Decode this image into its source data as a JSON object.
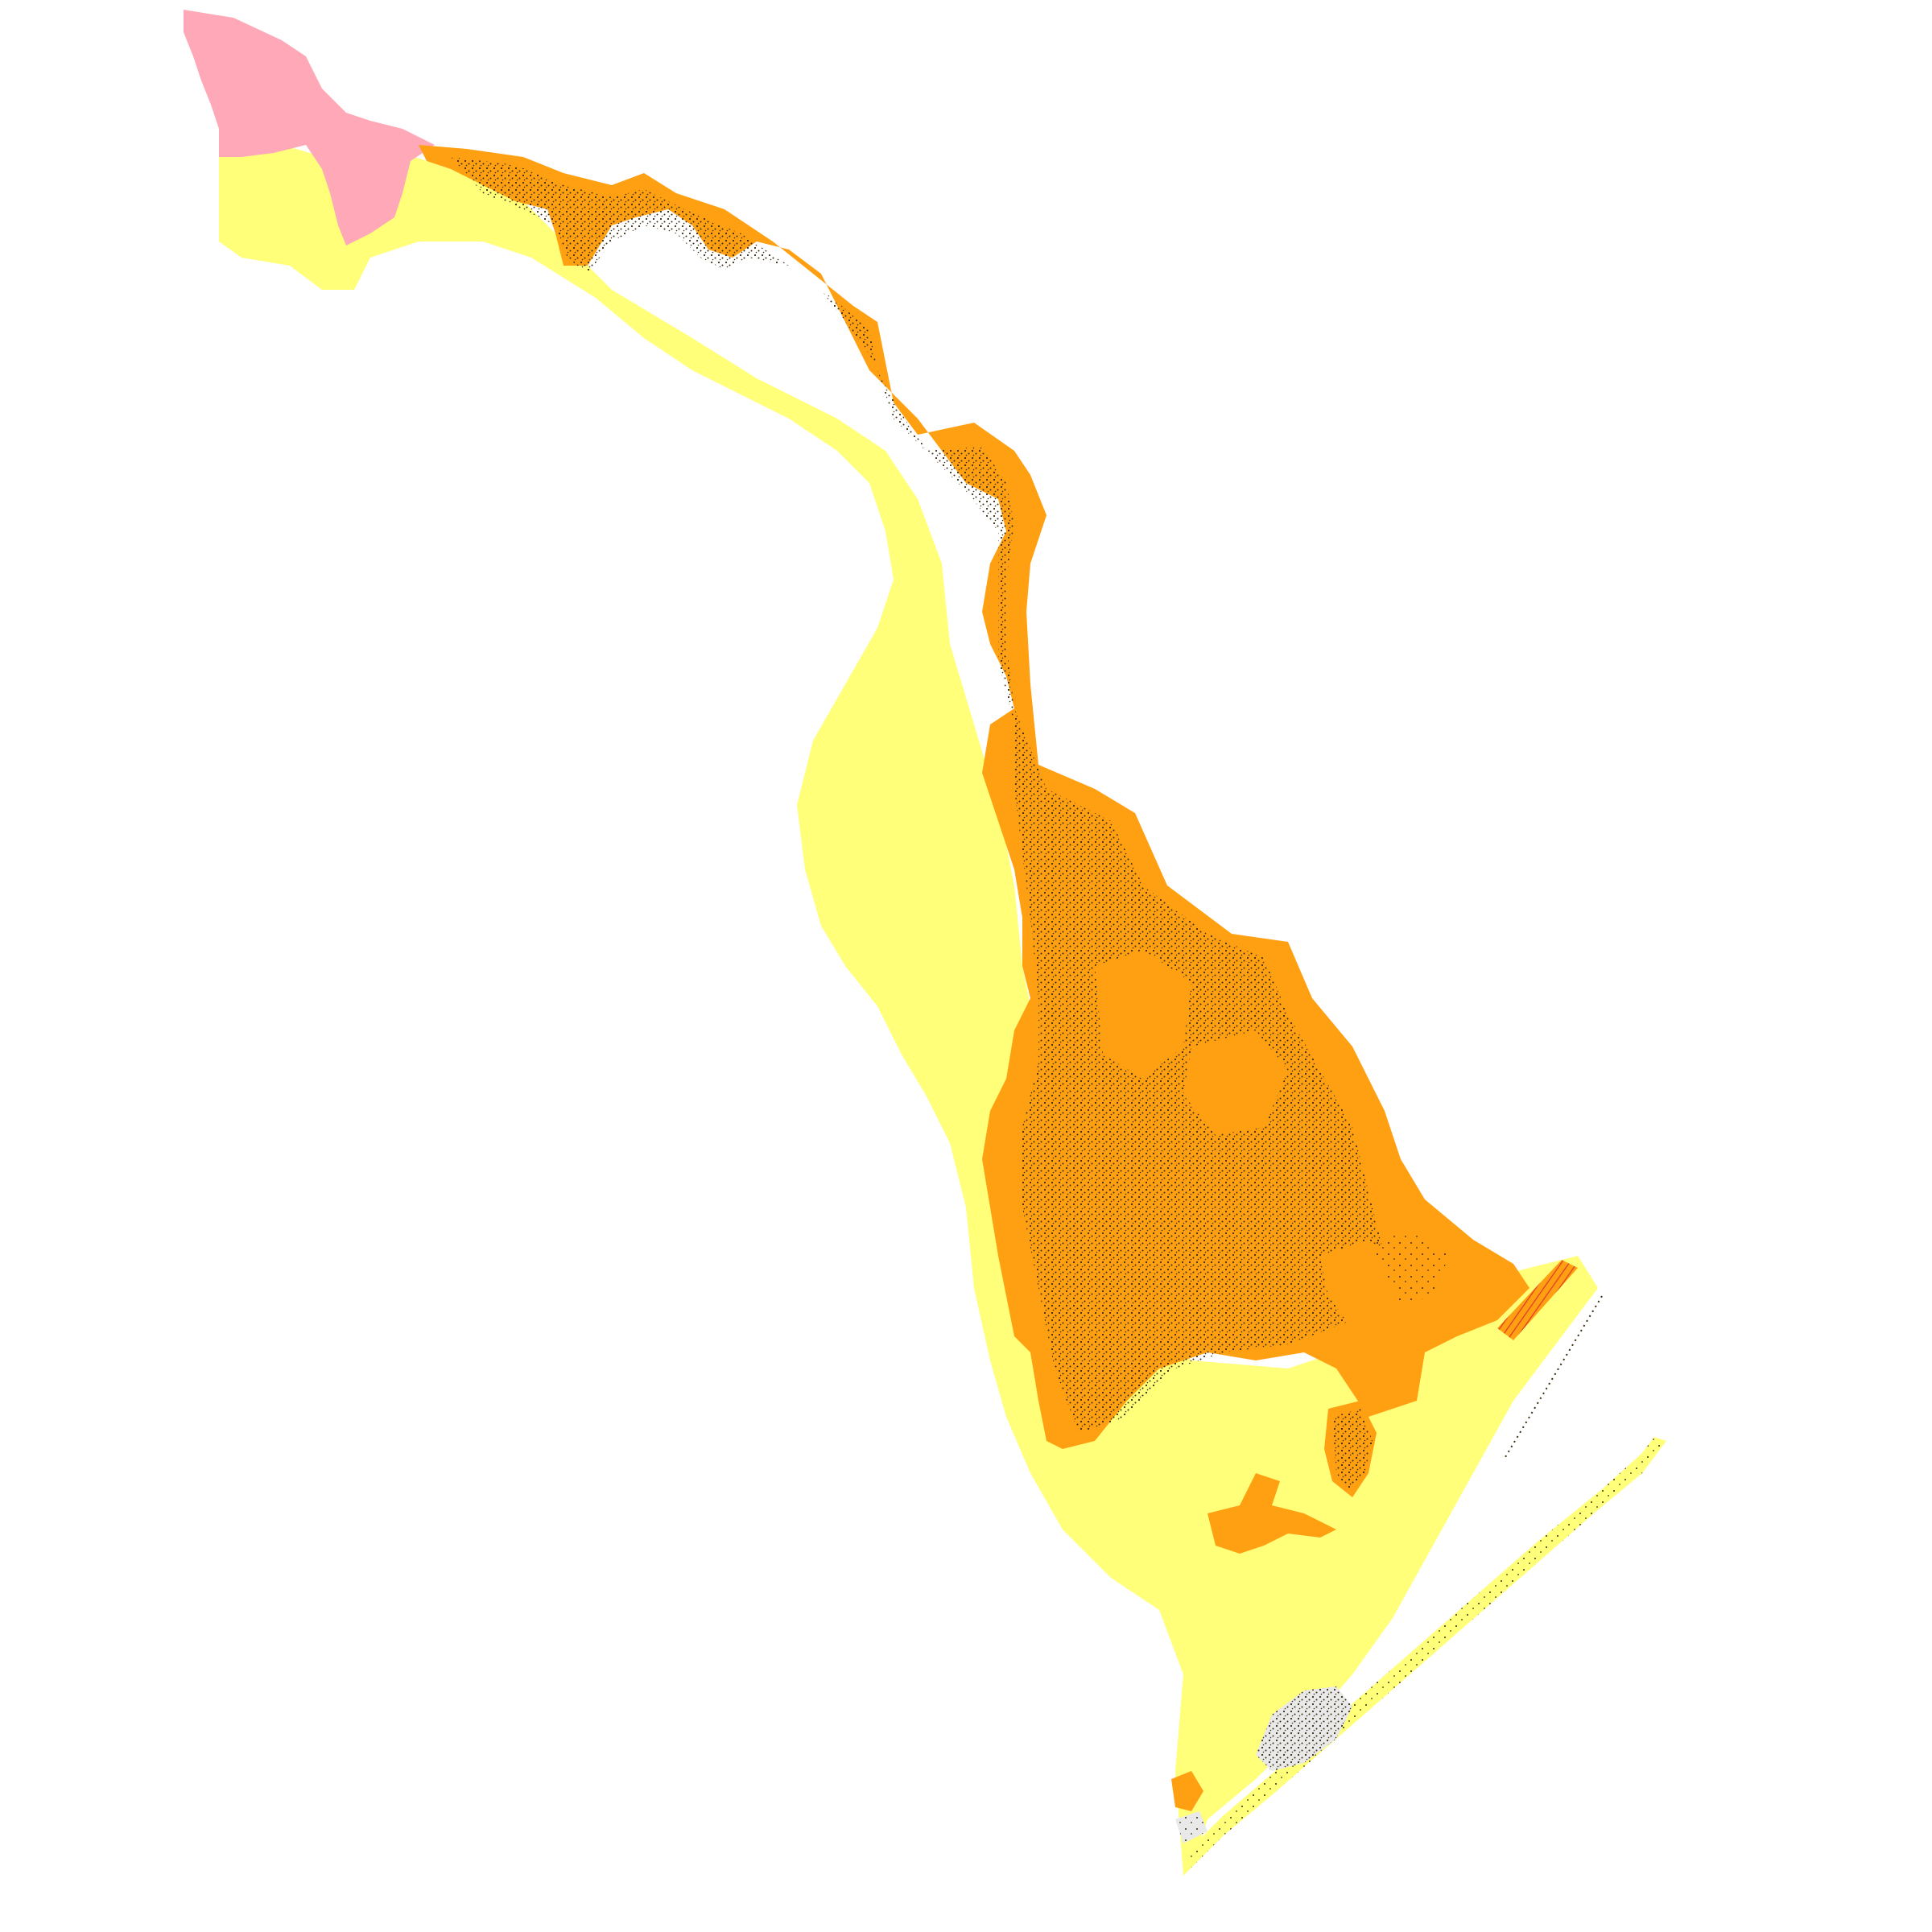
{
  "map": {
    "background_color": "#ffffff",
    "regions": [
      {
        "key": "pink-zone",
        "fill": "#ffa9b8",
        "stippled": false
      },
      {
        "key": "yellow-zone",
        "fill": "#ffff7a",
        "stippled": false
      },
      {
        "key": "orange-zone",
        "fill": "#ffa012",
        "stippled": true
      },
      {
        "key": "orange-island",
        "fill": "#ffa012",
        "stippled": false
      },
      {
        "key": "red-hatch-strip",
        "fill": "#ffa012",
        "hatch_color": "#e03a2a",
        "stippled": false
      },
      {
        "key": "lagoon-water",
        "fill": "#ffffff",
        "stippled": false
      },
      {
        "key": "barrier-island",
        "fill": "#ffff7a",
        "stippled": true
      },
      {
        "key": "urban-patch",
        "fill": "#e9e9e9",
        "stippled": true
      }
    ],
    "stipple_color": "#3a2a10",
    "text_labels": []
  }
}
